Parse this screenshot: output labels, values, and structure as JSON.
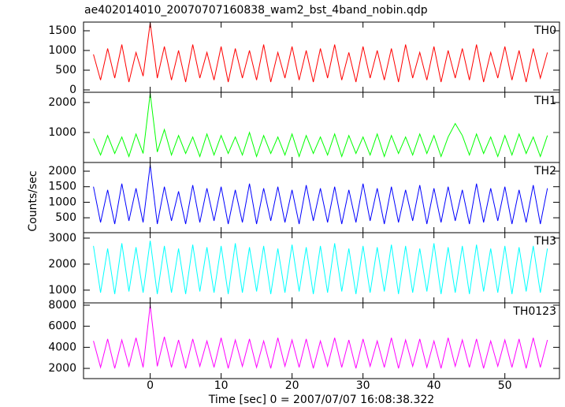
{
  "chart_data": {
    "type": "line",
    "title": "ae402014010_20070707160838_wam2_bst_4band_nobin.qdp",
    "x_label": "Time [sec] 0 = 2007/07/07 16:08:38.322",
    "y_label": "Counts/sec",
    "xlim": [
      -9.4,
      57.7
    ],
    "xticks": [
      0,
      10,
      20,
      30,
      40,
      50
    ],
    "x": [
      -8,
      -7,
      -6,
      -5,
      -4,
      -3,
      -2,
      -1,
      0,
      1,
      2,
      3,
      4,
      5,
      6,
      7,
      8,
      9,
      10,
      11,
      12,
      13,
      14,
      15,
      16,
      17,
      18,
      19,
      20,
      21,
      22,
      23,
      24,
      25,
      26,
      27,
      28,
      29,
      30,
      31,
      32,
      33,
      34,
      35,
      36,
      37,
      38,
      39,
      40,
      41,
      42,
      43,
      44,
      45,
      46,
      47,
      48,
      49,
      50,
      51,
      52,
      53,
      54,
      55,
      56
    ],
    "panels": [
      {
        "name": "TH0",
        "color": "#ff0000",
        "ylim": [
          -60,
          1720
        ],
        "yticks": [
          0,
          500,
          1000,
          1500
        ],
        "values": [
          900,
          250,
          1050,
          300,
          1150,
          200,
          950,
          350,
          1700,
          300,
          1100,
          250,
          1000,
          200,
          1150,
          300,
          950,
          250,
          1100,
          200,
          1050,
          300,
          1000,
          250,
          1150,
          200,
          950,
          300,
          1100,
          250,
          1000,
          200,
          1050,
          300,
          1150,
          250,
          950,
          200,
          1100,
          300,
          1000,
          250,
          1050,
          200,
          1150,
          300,
          950,
          250,
          1100,
          200,
          1000,
          300,
          1050,
          250,
          1150,
          200,
          950,
          300,
          1100,
          250,
          1000,
          200,
          1050,
          300,
          950
        ]
      },
      {
        "name": "TH1",
        "color": "#00ff00",
        "ylim": [
          0,
          2340
        ],
        "yticks": [
          1000,
          2000
        ],
        "values": [
          800,
          250,
          900,
          300,
          850,
          200,
          950,
          300,
          2300,
          350,
          1100,
          250,
          900,
          300,
          850,
          200,
          950,
          250,
          900,
          300,
          850,
          250,
          1000,
          200,
          900,
          300,
          850,
          250,
          950,
          200,
          900,
          300,
          850,
          250,
          950,
          200,
          900,
          300,
          850,
          250,
          950,
          200,
          900,
          300,
          850,
          250,
          950,
          300,
          900,
          200,
          850,
          1300,
          900,
          250,
          950,
          300,
          850,
          200,
          900,
          250,
          950,
          300,
          850,
          200,
          900
        ]
      },
      {
        "name": "TH2",
        "color": "#0000ff",
        "ylim": [
          20,
          2280
        ],
        "yticks": [
          500,
          1000,
          1500,
          2000
        ],
        "values": [
          1500,
          350,
          1400,
          300,
          1600,
          400,
          1450,
          350,
          2200,
          300,
          1500,
          400,
          1350,
          300,
          1550,
          350,
          1450,
          400,
          1500,
          300,
          1400,
          350,
          1600,
          300,
          1450,
          400,
          1500,
          350,
          1400,
          300,
          1550,
          400,
          1450,
          350,
          1500,
          300,
          1400,
          350,
          1600,
          400,
          1450,
          300,
          1500,
          350,
          1400,
          400,
          1550,
          300,
          1450,
          350,
          1500,
          400,
          1400,
          300,
          1600,
          350,
          1450,
          400,
          1500,
          300,
          1400,
          350,
          1550,
          300,
          1450
        ]
      },
      {
        "name": "TH3",
        "color": "#00ffff",
        "ylim": [
          510,
          3210
        ],
        "yticks": [
          1000,
          2000,
          3000
        ],
        "values": [
          2700,
          900,
          2600,
          850,
          2800,
          950,
          2650,
          900,
          2900,
          850,
          2700,
          900,
          2600,
          850,
          2750,
          950,
          2650,
          900,
          2700,
          850,
          2800,
          900,
          2650,
          950,
          2700,
          850,
          2600,
          900,
          2750,
          950,
          2650,
          850,
          2700,
          900,
          2800,
          950,
          2600,
          850,
          2700,
          900,
          2650,
          950,
          2750,
          850,
          2700,
          900,
          2600,
          950,
          2800,
          850,
          2650,
          900,
          2700,
          850,
          2750,
          950,
          2600,
          900,
          2700,
          850,
          2650,
          950,
          2700,
          900,
          2600
        ]
      },
      {
        "name": "TH0123",
        "color": "#ff00ff",
        "ylim": [
          1030,
          8220
        ],
        "yticks": [
          2000,
          4000,
          6000,
          8000
        ],
        "values": [
          4600,
          2100,
          4800,
          2000,
          4700,
          2200,
          4900,
          2100,
          8000,
          2200,
          5000,
          2100,
          4700,
          2000,
          4800,
          2200,
          4600,
          2100,
          4900,
          2000,
          4700,
          2200,
          4800,
          2100,
          4600,
          2000,
          4900,
          2200,
          4700,
          2100,
          4800,
          2000,
          4600,
          2200,
          4900,
          2100,
          4700,
          2000,
          4800,
          2200,
          4600,
          2100,
          4900,
          2000,
          4700,
          2200,
          4800,
          2100,
          4600,
          2000,
          4900,
          2200,
          4700,
          2100,
          4800,
          2000,
          4600,
          2200,
          4700,
          2100,
          4800,
          2000,
          4900,
          2100,
          4700
        ]
      }
    ]
  }
}
